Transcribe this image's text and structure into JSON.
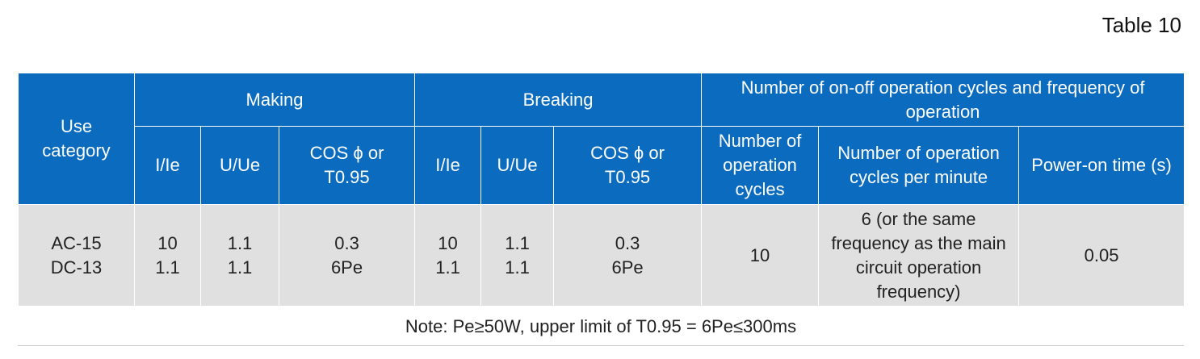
{
  "caption": "Table 10",
  "header": {
    "use_category": "Use category",
    "making": "Making",
    "breaking": "Breaking",
    "cycles_group": "Number of on-off operation cycles and frequency of operation",
    "making_cols": [
      "I/Ie",
      "U/Ue",
      "COS ϕ  or T0.95"
    ],
    "breaking_cols": [
      "I/Ie",
      "U/Ue",
      "COS ϕ  or T0.95"
    ],
    "cycles_cols": [
      "Number of operation cycles",
      "Number of operation cycles per minute",
      "Power-on time (s)"
    ]
  },
  "row": {
    "use_category": [
      "AC-15",
      "DC-13"
    ],
    "making_i": [
      "10",
      "1.1"
    ],
    "making_u": [
      "1.1",
      "1.1"
    ],
    "making_cos": [
      "0.3",
      "6Pe"
    ],
    "breaking_i": [
      "10",
      "1.1"
    ],
    "breaking_u": [
      "1.1",
      "1.1"
    ],
    "breaking_cos": [
      "0.3",
      "6Pe"
    ],
    "cycles": "10",
    "cycles_per_minute": "6 (or the same frequency as the main circuit operation frequency)",
    "power_on_time": "0.05"
  },
  "note": "Note: Pe≥50W, upper limit of T0.95 = 6Pe≤300ms"
}
